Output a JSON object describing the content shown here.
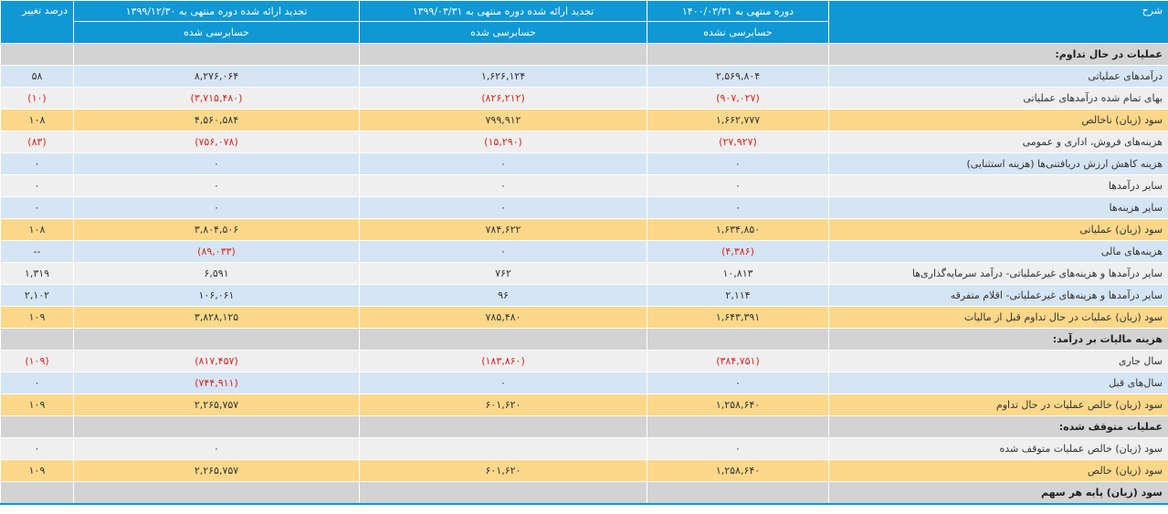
{
  "header": {
    "columns": [
      {
        "title": "شرح"
      },
      {
        "title": "دوره منتهی به ۱۴۰۰/۰۳/۳۱",
        "sub": "حسابرسی نشده"
      },
      {
        "title": "تجدید ارائه شده دوره منتهی به ۱۳۹۹/۰۳/۳۱",
        "sub": "حسابرسی شده"
      },
      {
        "title": "تجدید ارائه شده دوره منتهی به ۱۳۹۹/۱۲/۳۰",
        "sub": "حسابرسی شده"
      },
      {
        "title": "درصد تغییر"
      }
    ]
  },
  "rows": [
    {
      "style": "section",
      "cells": [
        "عملیات در حال تداوم:"
      ]
    },
    {
      "style": "blue",
      "cells": [
        "درآمدهای عملیاتی",
        "۲,۵۶۹,۸۰۴",
        "۱,۶۲۶,۱۲۴",
        "۸,۲۷۶,۰۶۴",
        "۵۸"
      ]
    },
    {
      "style": "white",
      "cells": [
        "بهای تمام شده درآمدهای عملیاتی",
        "(۹۰۷,۰۲۷)",
        "(۸۲۶,۲۱۲)",
        "(۳,۷۱۵,۴۸۰)",
        "(۱۰)"
      ]
    },
    {
      "style": "yellow",
      "cells": [
        "سود (زیان) ناخالص",
        "۱,۶۶۲,۷۷۷",
        "۷۹۹,۹۱۲",
        "۴,۵۶۰,۵۸۴",
        "۱۰۸"
      ]
    },
    {
      "style": "white",
      "cells": [
        "هزینه‌های فروش، اداری و عمومی",
        "(۲۷,۹۲۷)",
        "(۱۵,۲۹۰)",
        "(۷۵۶,۰۷۸)",
        "(۸۳)"
      ]
    },
    {
      "style": "blue",
      "cells": [
        "هزینه کاهش ارزش دریافتنی‌ها (هزینه استثنایی)",
        "۰",
        "۰",
        "۰",
        "۰"
      ]
    },
    {
      "style": "white",
      "cells": [
        "سایر درآمدها",
        "۰",
        "۰",
        "۰",
        "۰"
      ]
    },
    {
      "style": "blue",
      "cells": [
        "سایر هزینه‌ها",
        "۰",
        "۰",
        "۰",
        "۰"
      ]
    },
    {
      "style": "yellow",
      "cells": [
        "سود (زیان) عملیاتی",
        "۱,۶۳۴,۸۵۰",
        "۷۸۴,۶۲۲",
        "۳,۸۰۴,۵۰۶",
        "۱۰۸"
      ]
    },
    {
      "style": "blue",
      "cells": [
        "هزینه‌های مالی",
        "(۴,۳۸۶)",
        "۰",
        "(۸۹,۰۳۳)",
        "--"
      ]
    },
    {
      "style": "white",
      "cells": [
        "سایر درآمدها و هزینه‌های غیرعملیاتی- درآمد سرمایه‌گذاری‌ها",
        "۱۰,۸۱۳",
        "۷۶۲",
        "۶,۵۹۱",
        "۱,۳۱۹"
      ]
    },
    {
      "style": "blue",
      "cells": [
        "سایر درآمدها و هزینه‌های غیرعملیاتی- اقلام متفرقه",
        "۲,۱۱۴",
        "۹۶",
        "۱۰۶,۰۶۱",
        "۲,۱۰۲"
      ]
    },
    {
      "style": "yellow",
      "cells": [
        "سود (زیان) عملیات در حال تداوم قبل از مالیات",
        "۱,۶۴۳,۳۹۱",
        "۷۸۵,۴۸۰",
        "۳,۸۲۸,۱۲۵",
        "۱۰۹"
      ]
    },
    {
      "style": "section",
      "cells": [
        "هزینه مالیات بر درآمد:"
      ]
    },
    {
      "style": "white",
      "cells": [
        "سال جاری",
        "(۳۸۴,۷۵۱)",
        "(۱۸۳,۸۶۰)",
        "(۸۱۷,۴۵۷)",
        "(۱۰۹)"
      ]
    },
    {
      "style": "blue",
      "cells": [
        "سال‌های قبل",
        "۰",
        "۰",
        "(۷۴۴,۹۱۱)",
        "۰"
      ]
    },
    {
      "style": "yellow",
      "cells": [
        "سود (زیان) خالص عملیات در حال تداوم",
        "۱,۲۵۸,۶۴۰",
        "۶۰۱,۶۲۰",
        "۲,۲۶۵,۷۵۷",
        "۱۰۹"
      ]
    },
    {
      "style": "section",
      "cells": [
        "عملیات متوقف شده:"
      ]
    },
    {
      "style": "white",
      "cells": [
        "سود (زیان) خالص عملیات متوقف شده",
        "۰",
        null,
        "۰",
        "۰"
      ]
    },
    {
      "style": "yellow",
      "cells": [
        "سود (زیان) خالص",
        "۱,۲۵۸,۶۴۰",
        "۶۰۱,۶۲۰",
        "۲,۲۶۵,۷۵۷",
        "۱۰۹"
      ]
    },
    {
      "style": "section",
      "cells": [
        "سود (زیان) پایه هر سهم"
      ]
    }
  ]
}
